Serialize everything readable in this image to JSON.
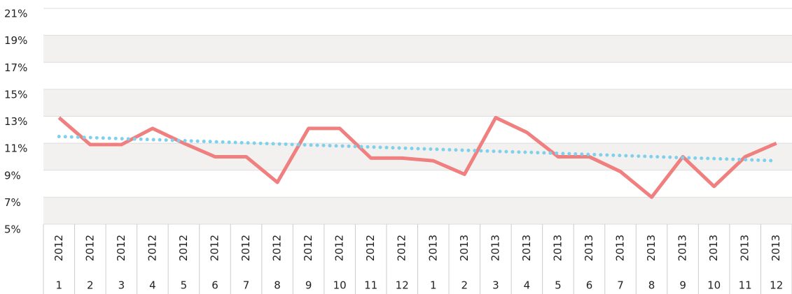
{
  "chart_data": {
    "type": "line",
    "categories": [
      "1",
      "2",
      "3",
      "4",
      "5",
      "6",
      "7",
      "8",
      "9",
      "10",
      "11",
      "12",
      "1",
      "2",
      "3",
      "4",
      "5",
      "6",
      "7",
      "8",
      "9",
      "10",
      "11",
      "12"
    ],
    "category_years": [
      "2012",
      "2012",
      "2012",
      "2012",
      "2012",
      "2012",
      "2012",
      "2012",
      "2012",
      "2012",
      "2012",
      "2012",
      "2013",
      "2013",
      "2013",
      "2013",
      "2013",
      "2013",
      "2013",
      "2013",
      "2013",
      "2013",
      "2013",
      "2013"
    ],
    "series": [
      {
        "color": "#f08080",
        "style": "solid",
        "values": [
          12.9,
          10.9,
          10.9,
          12.1,
          11.0,
          10.0,
          10.0,
          8.1,
          12.1,
          12.1,
          9.9,
          9.9,
          9.7,
          8.7,
          12.9,
          11.8,
          10.0,
          10.0,
          8.9,
          7.0,
          10.0,
          7.8,
          10.0,
          11.0
        ]
      },
      {
        "color": "#7fd0ea",
        "style": "dotted",
        "values": [
          11.5,
          11.42,
          11.34,
          11.27,
          11.19,
          11.11,
          11.03,
          10.95,
          10.87,
          10.8,
          10.72,
          10.64,
          10.56,
          10.48,
          10.4,
          10.33,
          10.25,
          10.17,
          10.09,
          10.01,
          9.93,
          9.86,
          9.78,
          9.7
        ]
      }
    ],
    "ylim": [
      5,
      21
    ],
    "yticks": [
      {
        "value": 5,
        "label": "5%"
      },
      {
        "value": 7,
        "label": "7%"
      },
      {
        "value": 9,
        "label": "9%"
      },
      {
        "value": 11,
        "label": "11%"
      },
      {
        "value": 13,
        "label": "13%"
      },
      {
        "value": 15,
        "label": "15%"
      },
      {
        "value": 17,
        "label": "17%"
      },
      {
        "value": 19,
        "label": "19%"
      },
      {
        "value": 21,
        "label": "21%"
      }
    ],
    "grid": true,
    "band_color": "#f2f1f0"
  }
}
